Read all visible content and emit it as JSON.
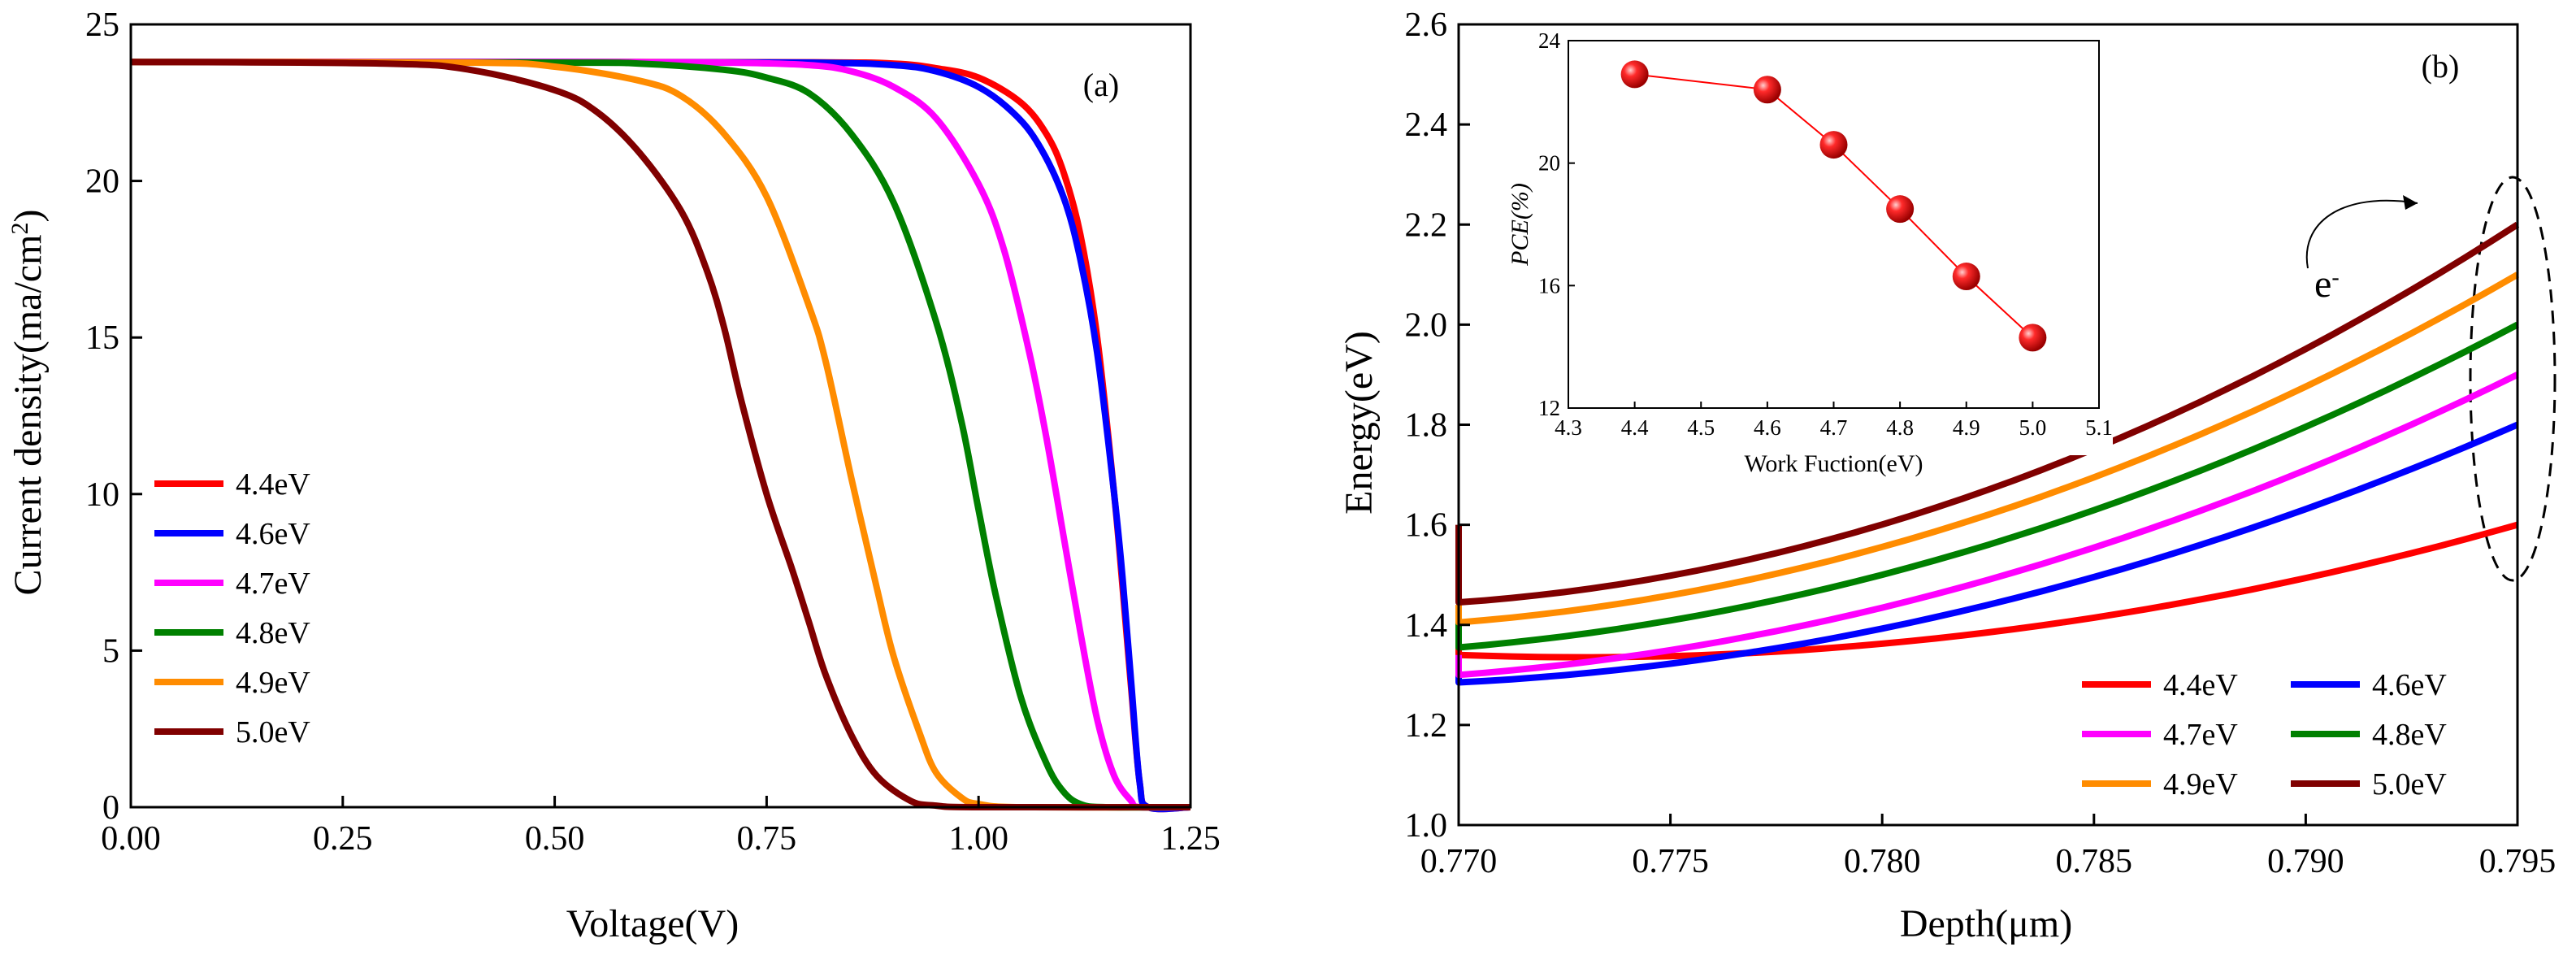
{
  "chart_data": [
    {
      "id": "a",
      "type": "line",
      "panel_label": "(a)",
      "title": "",
      "xlabel": "Voltage(V)",
      "ylabel_main": "Current density(ma/cm",
      "ylabel_sup": "2",
      "ylabel_end": ")",
      "xlim": [
        0,
        1.25
      ],
      "ylim": [
        0,
        25
      ],
      "xticks": [
        0,
        0.25,
        0.5,
        0.75,
        1.0,
        1.25
      ],
      "xtick_labels": [
        "0.00",
        "0.25",
        "0.50",
        "0.75",
        "1.00",
        "1.25"
      ],
      "yticks": [
        0,
        5,
        10,
        15,
        20,
        25
      ],
      "ytick_labels": [
        "0",
        "5",
        "10",
        "15",
        "20",
        "25"
      ],
      "legend_position": "left-middle",
      "series": [
        {
          "name": "4.4eV",
          "color": "#ff0000",
          "x": [
            0,
            0.5,
            0.8,
            0.9,
            0.95,
            1.0,
            1.05,
            1.08,
            1.1,
            1.12,
            1.14,
            1.16,
            1.17,
            1.18,
            1.19,
            1.2,
            1.25
          ],
          "y": [
            23.8,
            23.8,
            23.79,
            23.75,
            23.6,
            23.3,
            22.5,
            21.5,
            20.3,
            18.3,
            15.0,
            10.0,
            7.0,
            3.8,
            0.8,
            0,
            0
          ]
        },
        {
          "name": "4.6eV",
          "color": "#0000ff",
          "x": [
            0,
            0.5,
            0.8,
            0.9,
            0.95,
            1.0,
            1.04,
            1.07,
            1.1,
            1.12,
            1.14,
            1.16,
            1.17,
            1.18,
            1.19,
            1.2,
            1.25
          ],
          "y": [
            23.8,
            23.8,
            23.78,
            23.7,
            23.5,
            23.0,
            22.2,
            21.2,
            19.5,
            17.5,
            14.5,
            10.0,
            7.3,
            4.0,
            0.8,
            0,
            0
          ]
        },
        {
          "name": "4.7eV",
          "color": "#ff00ff",
          "x": [
            0,
            0.5,
            0.7,
            0.8,
            0.85,
            0.9,
            0.95,
            1.0,
            1.03,
            1.06,
            1.08,
            1.1,
            1.12,
            1.14,
            1.16,
            1.18,
            1.19,
            1.25
          ],
          "y": [
            23.8,
            23.8,
            23.78,
            23.7,
            23.5,
            23.0,
            22.0,
            19.9,
            17.8,
            14.5,
            11.8,
            8.7,
            5.6,
            2.8,
            1.0,
            0.2,
            0,
            0
          ]
        },
        {
          "name": "4.8eV",
          "color": "#008000",
          "x": [
            0,
            0.5,
            0.6,
            0.7,
            0.75,
            0.8,
            0.85,
            0.9,
            0.95,
            0.98,
            1.0,
            1.02,
            1.05,
            1.08,
            1.1,
            1.12,
            1.15,
            1.25
          ],
          "y": [
            23.8,
            23.78,
            23.75,
            23.55,
            23.3,
            22.8,
            21.5,
            19.3,
            15.5,
            12.3,
            9.5,
            6.8,
            3.5,
            1.4,
            0.5,
            0.1,
            0,
            0
          ]
        },
        {
          "name": "4.9eV",
          "color": "#ff8c00",
          "x": [
            0,
            0.4,
            0.5,
            0.6,
            0.65,
            0.7,
            0.75,
            0.8,
            0.82,
            0.85,
            0.88,
            0.9,
            0.93,
            0.95,
            0.98,
            1.0,
            1.05,
            1.25
          ],
          "y": [
            23.8,
            23.78,
            23.65,
            23.2,
            22.7,
            21.5,
            19.5,
            16.0,
            14.2,
            10.5,
            7.0,
            4.8,
            2.4,
            1.1,
            0.3,
            0.1,
            0,
            0
          ]
        },
        {
          "name": "5.0eV",
          "color": "#800000",
          "x": [
            0,
            0.3,
            0.4,
            0.5,
            0.55,
            0.6,
            0.65,
            0.68,
            0.7,
            0.72,
            0.75,
            0.78,
            0.8,
            0.82,
            0.85,
            0.88,
            0.92,
            0.95,
            1.0,
            1.25
          ],
          "y": [
            23.8,
            23.75,
            23.55,
            22.9,
            22.2,
            20.9,
            19.0,
            17.1,
            15.3,
            13.0,
            10.0,
            7.6,
            5.9,
            4.2,
            2.3,
            1.0,
            0.2,
            0.05,
            0,
            0
          ]
        }
      ]
    },
    {
      "id": "b",
      "type": "line",
      "panel_label": "(b)",
      "title": "",
      "xlabel": "Depth(μm)",
      "ylabel": "Energy(eV)",
      "xlim": [
        0.77,
        0.795
      ],
      "ylim": [
        1.0,
        2.6
      ],
      "xticks": [
        0.77,
        0.775,
        0.78,
        0.785,
        0.79,
        0.795
      ],
      "xtick_labels": [
        "0.770",
        "0.775",
        "0.780",
        "0.785",
        "0.790",
        "0.795"
      ],
      "yticks": [
        1.0,
        1.2,
        1.4,
        1.6,
        1.8,
        2.0,
        2.2,
        2.4,
        2.6
      ],
      "ytick_labels": [
        "1.0",
        "1.2",
        "1.4",
        "1.6",
        "1.8",
        "2.0",
        "2.2",
        "2.4",
        "2.6"
      ],
      "legend_position": "bottom-right",
      "annotation": {
        "text": "e",
        "sup": "-",
        "description": "electron moves upward past the barrier (dashed ellipse around curve ends)"
      },
      "series": [
        {
          "name": "4.4eV",
          "color": "#ff0000",
          "start": 1.34,
          "mid": 1.385,
          "end": 1.6,
          "spike": 1.4
        },
        {
          "name": "4.6eV",
          "color": "#0000ff",
          "start": 1.285,
          "mid": 1.44,
          "end": 1.8,
          "spike": 1.33
        },
        {
          "name": "4.7eV",
          "color": "#ff00ff",
          "start": 1.3,
          "mid": 1.49,
          "end": 1.9,
          "spike": 1.34
        },
        {
          "name": "4.8eV",
          "color": "#008000",
          "start": 1.355,
          "mid": 1.56,
          "end": 2.0,
          "spike": 1.41
        },
        {
          "name": "4.9eV",
          "color": "#ff8c00",
          "start": 1.405,
          "mid": 1.62,
          "end": 2.1,
          "spike": 1.44
        },
        {
          "name": "5.0eV",
          "color": "#800000",
          "start": 1.445,
          "mid": 1.67,
          "end": 2.2,
          "spike": 1.6
        }
      ],
      "inset": {
        "type": "line",
        "xlabel": "Work Fuction(eV)",
        "ylabel": "PCE(%)",
        "xlim": [
          4.3,
          5.1
        ],
        "ylim": [
          12,
          24
        ],
        "xticks": [
          4.3,
          4.4,
          4.5,
          4.6,
          4.7,
          4.8,
          4.9,
          5.0,
          5.1
        ],
        "xtick_labels": [
          "4.3",
          "4.4",
          "4.5",
          "4.6",
          "4.7",
          "4.8",
          "4.9",
          "5.0",
          "5.1"
        ],
        "yticks": [
          12,
          16,
          20,
          24
        ],
        "ytick_labels": [
          "12",
          "16",
          "20",
          "24"
        ],
        "color": "#ff0000",
        "x": [
          4.4,
          4.6,
          4.7,
          4.8,
          4.9,
          5.0
        ],
        "y": [
          22.9,
          22.4,
          20.6,
          18.5,
          16.3,
          14.3
        ]
      }
    }
  ]
}
